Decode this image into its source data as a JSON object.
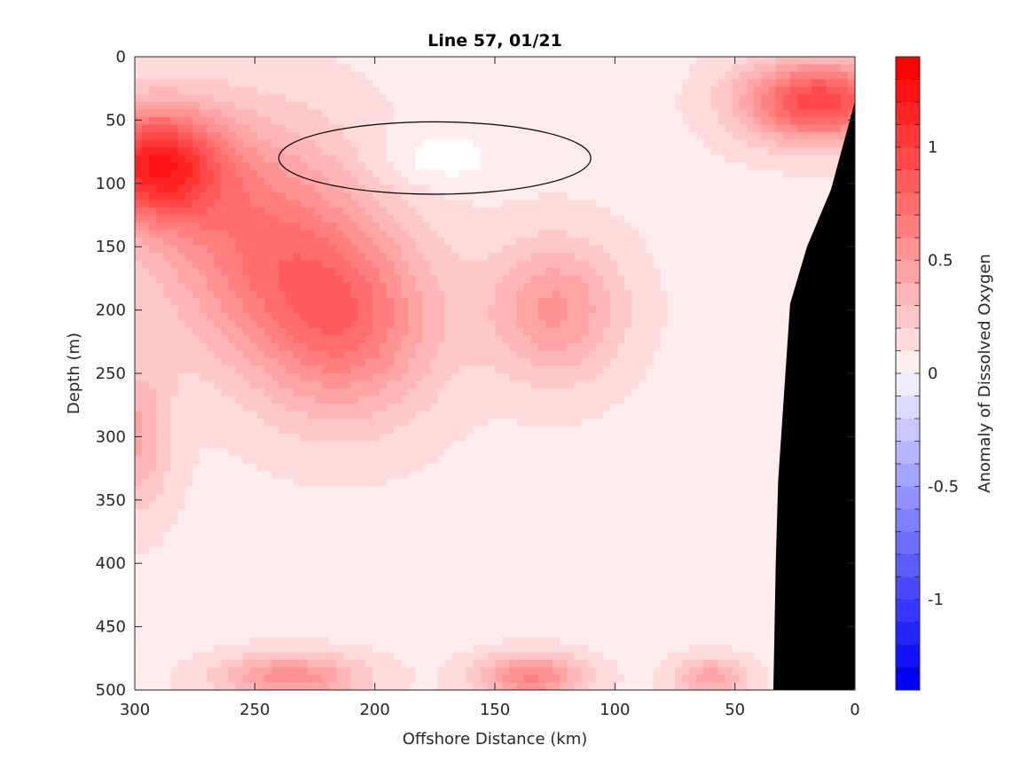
{
  "chart_data": {
    "type": "heatmap",
    "title": "Line 57, 01/21",
    "xlabel": "Offshore Distance (km)",
    "ylabel": "Depth (m)",
    "colorbar_label": "Anomaly of Dissolved Oxygen",
    "xlim": [
      300,
      0
    ],
    "ylim": [
      500,
      0
    ],
    "x_direction": "reversed",
    "y_direction": "reversed (depth increases downward)",
    "x_ticks": [
      300,
      250,
      200,
      150,
      100,
      50,
      0
    ],
    "y_ticks": [
      0,
      50,
      100,
      150,
      200,
      250,
      300,
      350,
      400,
      450,
      500
    ],
    "colorbar_ticks": [
      1,
      0.5,
      0,
      -0.5,
      -1
    ],
    "colorbar_range": [
      -1.4,
      1.4
    ],
    "colorbar_step": 0.1,
    "colormap": {
      "negative": "#0000ff",
      "zero": "#ffffff",
      "positive": "#ff0000"
    },
    "zero_contour_color": "#000000",
    "bathymetry_fill": "#000000",
    "bathymetry": [
      {
        "x": 0,
        "depth": 35
      },
      {
        "x": 10,
        "depth": 105
      },
      {
        "x": 20,
        "depth": 150
      },
      {
        "x": 27,
        "depth": 195
      },
      {
        "x": 32,
        "depth": 335
      },
      {
        "x": 33,
        "depth": 400
      },
      {
        "x": 34,
        "depth": 500
      }
    ],
    "anomaly_features": [
      {
        "x": 292,
        "depth": 85,
        "value": 1.0,
        "spread_x": 28,
        "spread_depth": 45
      },
      {
        "x": 15,
        "depth": 35,
        "value": 0.9,
        "spread_x": 32,
        "spread_depth": 32
      },
      {
        "x": 250,
        "depth": 140,
        "value": 0.55,
        "spread_x": 45,
        "spread_depth": 90
      },
      {
        "x": 212,
        "depth": 210,
        "value": 0.6,
        "spread_x": 38,
        "spread_depth": 75
      },
      {
        "x": 125,
        "depth": 200,
        "value": 0.45,
        "spread_x": 28,
        "spread_depth": 55
      },
      {
        "x": 135,
        "depth": 490,
        "value": 0.55,
        "spread_x": 22,
        "spread_depth": 18
      },
      {
        "x": 235,
        "depth": 490,
        "value": 0.5,
        "spread_x": 30,
        "spread_depth": 18
      },
      {
        "x": 60,
        "depth": 490,
        "value": 0.4,
        "spread_x": 15,
        "spread_depth": 15
      },
      {
        "x": 175,
        "depth": 80,
        "value": -0.15,
        "spread_x": 25,
        "spread_depth": 22
      },
      {
        "x": 300,
        "depth": 300,
        "value": 0.35,
        "spread_x": 15,
        "spread_depth": 60
      }
    ]
  }
}
